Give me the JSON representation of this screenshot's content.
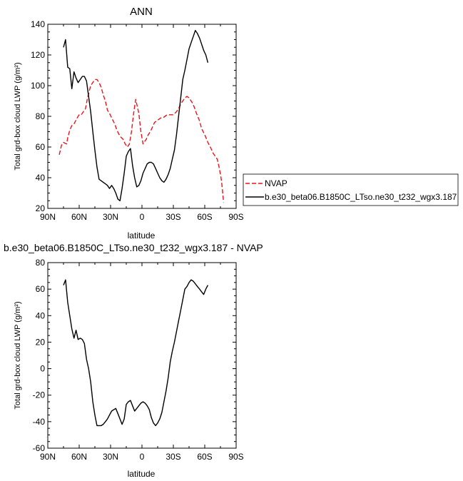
{
  "chart_data": [
    {
      "type": "line",
      "title": "ANN",
      "xlabel": "latitude",
      "ylabel": "Total grd-box cloud LWP (g/m²)",
      "xlim": [
        90,
        -90
      ],
      "ylim": [
        20,
        140
      ],
      "x_ticks": [
        90,
        60,
        30,
        0,
        -30,
        -60,
        -90
      ],
      "x_tick_labels": [
        "90N",
        "60N",
        "30N",
        "0",
        "30S",
        "60S",
        "90S"
      ],
      "y_ticks": [
        20,
        40,
        60,
        80,
        100,
        120,
        140
      ],
      "y_tick_labels": [
        "20",
        "40",
        "60",
        "80",
        "100",
        "120",
        "140"
      ],
      "legend_placement": "right",
      "series": [
        {
          "name": "NVAP",
          "color": "#e8141c",
          "dash": "dashed",
          "x": [
            79,
            77,
            75,
            72,
            71,
            69,
            67,
            65,
            62,
            60,
            58,
            54,
            52,
            49,
            45,
            43,
            41,
            39,
            37,
            35,
            33,
            31,
            29,
            26,
            24,
            21,
            18,
            16,
            14,
            12,
            10,
            8,
            6,
            3,
            1,
            -1,
            -4,
            -6,
            -8,
            -10,
            -12,
            -14,
            -16,
            -18,
            -20,
            -22,
            -24,
            -26,
            -28,
            -30,
            -33,
            -35,
            -37,
            -39,
            -41,
            -43,
            -45,
            -48,
            -50,
            -52,
            -55,
            -57,
            -60,
            -63,
            -66,
            -68,
            -70,
            -72,
            -74,
            -76,
            -78
          ],
          "values": [
            55,
            61,
            63,
            62,
            66,
            71,
            74,
            75,
            79,
            81,
            81,
            85,
            92,
            100,
            104,
            104,
            102,
            99,
            94,
            90,
            84,
            82,
            79,
            75,
            71,
            67,
            65,
            62,
            60,
            62,
            70,
            82,
            91,
            82,
            70,
            62,
            65,
            68,
            70,
            73,
            76,
            77,
            78,
            79,
            79,
            80,
            81,
            81,
            81,
            81,
            83,
            85,
            88,
            90,
            92,
            93,
            92,
            89,
            86,
            82,
            77,
            72,
            68,
            63,
            59,
            56,
            54,
            52,
            46,
            38,
            24
          ]
        },
        {
          "name": "b.e30_beta06.B1850C_LTso.ne30_t232_wgx3.187",
          "color": "#000000",
          "dash": "solid",
          "x": [
            75,
            73,
            71,
            69,
            67,
            65,
            63,
            61,
            59,
            57,
            55,
            53,
            51,
            49,
            47,
            45,
            43,
            41,
            39,
            37,
            35,
            33,
            31,
            29,
            27,
            25,
            23,
            21,
            19,
            17,
            15,
            13,
            11,
            9,
            7,
            5,
            3,
            1,
            -1,
            -3,
            -5,
            -7,
            -9,
            -11,
            -13,
            -15,
            -17,
            -19,
            -21,
            -23,
            -25,
            -27,
            -29,
            -31,
            -33,
            -35,
            -37,
            -39,
            -41,
            -43,
            -45,
            -47,
            -49,
            -51,
            -53,
            -55,
            -57,
            -59,
            -61,
            -63
          ],
          "values": [
            125,
            130,
            112,
            111,
            98,
            109,
            105,
            102,
            104,
            106,
            106,
            103,
            93,
            83,
            70,
            58,
            47,
            39,
            38,
            37,
            36,
            35,
            33,
            35,
            33,
            30,
            26,
            25,
            33,
            43,
            54,
            57,
            59,
            48,
            40,
            34,
            35,
            38,
            43,
            46,
            49,
            50,
            50,
            49,
            46,
            43,
            40,
            38,
            37,
            39,
            42,
            46,
            52,
            58,
            68,
            80,
            92,
            104,
            110,
            117,
            124,
            128,
            132,
            136,
            134,
            131,
            127,
            123,
            120,
            115
          ]
        }
      ]
    },
    {
      "type": "line",
      "title": "b.e30_beta06.B1850C_LTso.ne30_t232_wgx3.187 - NVAP",
      "xlabel": "latitude",
      "ylabel": "Total grd-box cloud LWP (g/m²)",
      "xlim": [
        90,
        -90
      ],
      "ylim": [
        -60,
        80
      ],
      "x_ticks": [
        90,
        60,
        30,
        0,
        -30,
        -60,
        -90
      ],
      "x_tick_labels": [
        "90N",
        "60N",
        "30N",
        "0",
        "30S",
        "60S",
        "90S"
      ],
      "y_ticks": [
        -60,
        -40,
        -20,
        0,
        20,
        40,
        60,
        80
      ],
      "y_tick_labels": [
        "-60",
        "-40",
        "-20",
        "0",
        "20",
        "40",
        "60",
        "80"
      ],
      "series": [
        {
          "color": "#000000",
          "dash": "solid",
          "x": [
            75,
            73,
            71,
            69,
            67,
            65,
            63,
            61,
            59,
            57,
            55,
            53,
            51,
            49,
            47,
            45,
            43,
            41,
            39,
            37,
            35,
            33,
            31,
            29,
            27,
            25,
            23,
            21,
            19,
            17,
            15,
            13,
            11,
            9,
            7,
            5,
            3,
            1,
            -1,
            -3,
            -5,
            -7,
            -9,
            -11,
            -13,
            -15,
            -17,
            -19,
            -21,
            -23,
            -25,
            -27,
            -29,
            -31,
            -33,
            -35,
            -37,
            -39,
            -41,
            -43,
            -45,
            -47,
            -49,
            -51,
            -53,
            -55,
            -57,
            -59,
            -61,
            -63
          ],
          "values": [
            63,
            67,
            50,
            40,
            30,
            23,
            29,
            22,
            23,
            22,
            19,
            7,
            0,
            -10,
            -25,
            -35,
            -43,
            -43,
            -43,
            -42,
            -40,
            -38,
            -35,
            -32,
            -31,
            -30,
            -34,
            -38,
            -42,
            -38,
            -27,
            -25,
            -24,
            -28,
            -32,
            -30,
            -28,
            -26,
            -25,
            -26,
            -28,
            -31,
            -37,
            -41,
            -43,
            -41,
            -38,
            -33,
            -25,
            -17,
            -7,
            5,
            13,
            20,
            28,
            36,
            44,
            52,
            60,
            62,
            65,
            67,
            66,
            64,
            62,
            60,
            58,
            56,
            60,
            63
          ]
        }
      ]
    }
  ]
}
